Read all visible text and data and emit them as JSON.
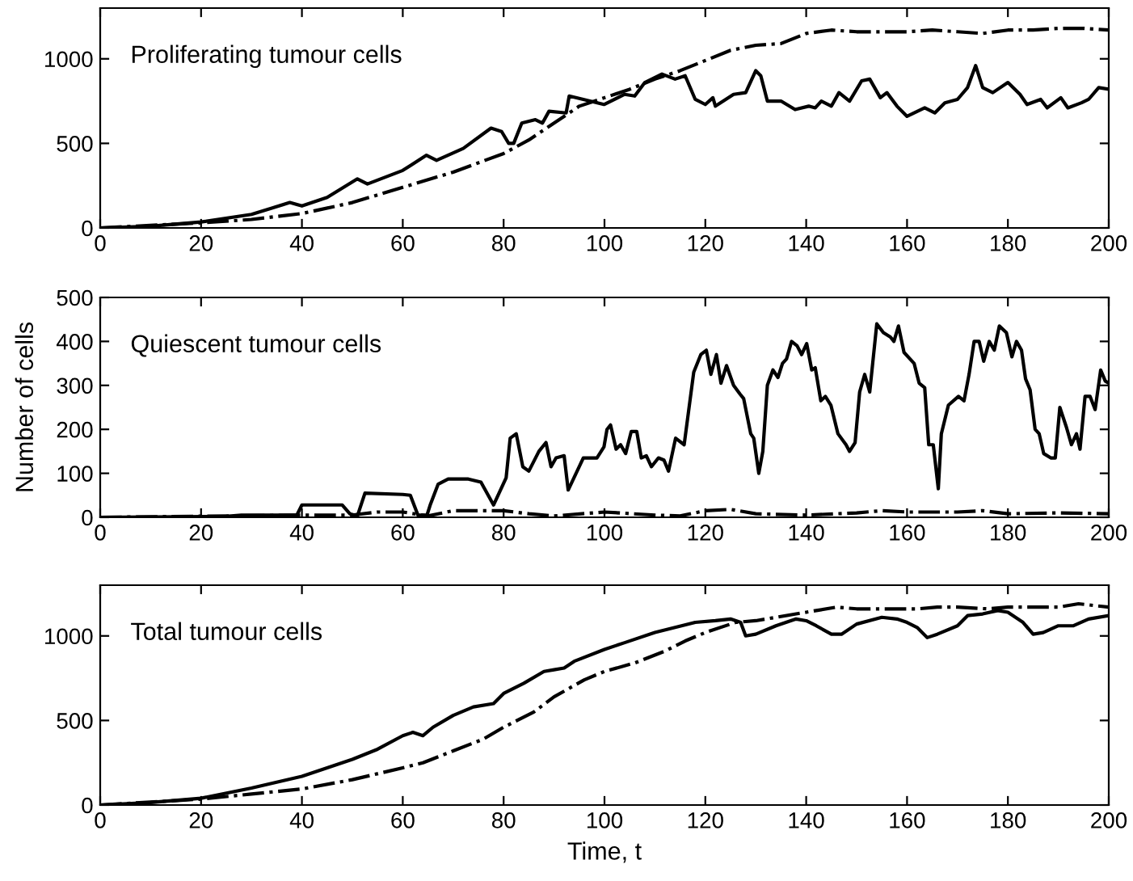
{
  "chart_data": [
    {
      "type": "line",
      "title": "Proliferating tumour cells",
      "xlim": [
        0,
        200
      ],
      "xticks": [
        0,
        20,
        40,
        60,
        80,
        100,
        120,
        140,
        160,
        180,
        200
      ],
      "ylim": [
        0,
        1300
      ],
      "yticks": [
        0,
        500,
        1000
      ],
      "grid": false,
      "series": [
        {
          "color": "#000000",
          "line_style": "solid",
          "x": [
            0,
            10,
            20,
            30,
            37.6,
            40,
            45,
            51,
            53,
            60,
            64.7,
            66.7,
            72,
            77.5,
            79.6,
            81,
            82,
            83.6,
            86.3,
            87.7,
            89,
            92.4,
            93,
            95.8,
            99.9,
            104,
            106,
            108,
            111.4,
            114,
            116,
            118,
            120,
            121.5,
            122,
            125.6,
            128,
            130,
            131,
            132.3,
            135,
            137.8,
            140.5,
            141.8,
            143,
            145,
            146.5,
            148.6,
            151,
            152.6,
            154.7,
            156,
            158,
            160,
            163.5,
            165.5,
            167.5,
            170,
            172,
            173.6,
            175,
            177,
            180,
            182.4,
            183.8,
            186.5,
            187.8,
            190.5,
            191.9,
            194.6,
            196,
            198,
            200
          ],
          "values": [
            0,
            10,
            35,
            80,
            150,
            130,
            180,
            290,
            260,
            340,
            430,
            400,
            470,
            590,
            570,
            500,
            500,
            620,
            640,
            620,
            690,
            680,
            780,
            760,
            730,
            790,
            780,
            860,
            910,
            880,
            900,
            760,
            730,
            770,
            720,
            790,
            800,
            930,
            900,
            750,
            750,
            700,
            720,
            710,
            750,
            720,
            800,
            750,
            870,
            880,
            770,
            800,
            720,
            660,
            710,
            680,
            740,
            760,
            830,
            960,
            830,
            800,
            860,
            790,
            730,
            760,
            710,
            770,
            710,
            740,
            760,
            830,
            820
          ]
        },
        {
          "color": "#000000",
          "line_style": "dashdot",
          "x": [
            0,
            20,
            30,
            40,
            50,
            60,
            70,
            80,
            85,
            90,
            95,
            100,
            105,
            110,
            115,
            120,
            125,
            130,
            135,
            140,
            145,
            150,
            155,
            160,
            165,
            170,
            175,
            180,
            185,
            190,
            195,
            200
          ],
          "values": [
            0,
            30,
            50,
            85,
            150,
            240,
            330,
            440,
            520,
            620,
            720,
            770,
            820,
            880,
            930,
            990,
            1050,
            1080,
            1090,
            1150,
            1170,
            1160,
            1160,
            1160,
            1170,
            1160,
            1150,
            1170,
            1170,
            1180,
            1180,
            1170
          ]
        }
      ]
    },
    {
      "type": "line",
      "title": "Quiescent tumour cells",
      "ylabel": "Number of cells",
      "xlim": [
        0,
        200
      ],
      "xticks": [
        0,
        20,
        40,
        60,
        80,
        100,
        120,
        140,
        160,
        180,
        200
      ],
      "ylim": [
        0,
        500
      ],
      "yticks": [
        0,
        100,
        200,
        300,
        400,
        500
      ],
      "grid": false,
      "series": [
        {
          "color": "#000000",
          "line_style": "solid",
          "x": [
            0,
            25,
            28,
            39,
            40,
            48,
            49.5,
            51,
            52.5,
            60,
            61.5,
            63,
            64.8,
            65.5,
            67,
            69,
            73,
            75.5,
            78,
            80.5,
            81.3,
            82.5,
            83.8,
            85,
            87,
            88.4,
            89.4,
            90.4,
            92,
            92.8,
            95.8,
            98.5,
            99.9,
            100.5,
            101.2,
            102.3,
            103.2,
            104.2,
            105.3,
            106.4,
            107.3,
            108.3,
            109.3,
            110.7,
            111.8,
            112.7,
            114.1,
            115.8,
            117.7,
            119.1,
            120.2,
            121.1,
            122.2,
            123.1,
            124.2,
            125.6,
            126.9,
            127.6,
            129,
            129.6,
            130.6,
            131.4,
            132.3,
            133.4,
            134.4,
            135.3,
            136.1,
            137.1,
            138.2,
            139.1,
            140.1,
            141.1,
            141.8,
            142.9,
            143.8,
            144.9,
            146.3,
            147.9,
            148.6,
            149.7,
            150.6,
            151.6,
            152.6,
            154,
            155.3,
            156.7,
            157.4,
            158.3,
            159.4,
            161.4,
            162.4,
            163.5,
            164.3,
            165.2,
            166.2,
            166.8,
            168.2,
            170.2,
            171.3,
            172.3,
            173.3,
            174.3,
            175.2,
            176.3,
            177.3,
            178.3,
            179.7,
            180.8,
            181.7,
            182.7,
            183.5,
            184.4,
            185.4,
            186.2,
            187.1,
            188.5,
            189.4,
            190.3,
            191.6,
            192.6,
            193.6,
            194.3,
            195.3,
            196.3,
            197.3,
            198.4,
            199.3,
            200
          ],
          "values": [
            0,
            2,
            5,
            5,
            28,
            28,
            8,
            3,
            55,
            52,
            50,
            5,
            5,
            30,
            75,
            87,
            87,
            80,
            28,
            90,
            180,
            190,
            115,
            105,
            150,
            170,
            115,
            135,
            140,
            62,
            135,
            135,
            160,
            200,
            210,
            155,
            165,
            145,
            195,
            195,
            135,
            140,
            115,
            135,
            130,
            105,
            180,
            165,
            330,
            370,
            380,
            325,
            370,
            305,
            345,
            300,
            280,
            270,
            190,
            180,
            100,
            150,
            300,
            335,
            318,
            350,
            360,
            400,
            390,
            370,
            395,
            335,
            340,
            265,
            275,
            255,
            190,
            165,
            150,
            170,
            285,
            325,
            285,
            440,
            420,
            410,
            400,
            435,
            375,
            350,
            305,
            295,
            165,
            165,
            65,
            190,
            255,
            275,
            265,
            325,
            400,
            400,
            355,
            400,
            380,
            435,
            420,
            365,
            400,
            380,
            315,
            290,
            200,
            190,
            145,
            135,
            135,
            250,
            205,
            165,
            190,
            155,
            275,
            275,
            245,
            335,
            310,
            305
          ]
        },
        {
          "color": "#000000",
          "line_style": "dashdot",
          "x": [
            0,
            40,
            50,
            55,
            60,
            65,
            70,
            80,
            85,
            90,
            100,
            110,
            115,
            120,
            125,
            130,
            140,
            150,
            155,
            160,
            170,
            175,
            180,
            190,
            200
          ],
          "values": [
            0,
            5,
            5,
            12,
            12,
            3,
            15,
            15,
            8,
            3,
            12,
            5,
            3,
            15,
            18,
            8,
            5,
            10,
            15,
            12,
            12,
            15,
            8,
            10,
            8
          ]
        }
      ]
    },
    {
      "type": "line",
      "title": "Total tumour cells",
      "xlabel": "Time, t",
      "xlim": [
        0,
        200
      ],
      "xticks": [
        0,
        20,
        40,
        60,
        80,
        100,
        120,
        140,
        160,
        180,
        200
      ],
      "ylim": [
        0,
        1300
      ],
      "yticks": [
        0,
        500,
        1000
      ],
      "grid": false,
      "series": [
        {
          "color": "#000000",
          "line_style": "solid",
          "x": [
            0,
            10,
            20,
            30,
            40,
            50,
            55,
            60,
            62,
            64,
            66,
            70,
            74,
            78,
            80,
            84,
            88,
            90,
            92,
            94,
            100,
            104,
            110,
            114,
            118,
            122,
            125,
            127,
            128,
            130,
            134,
            138,
            140,
            142,
            145,
            147,
            150,
            155,
            158,
            160,
            162,
            164,
            166,
            170,
            172,
            175,
            178,
            180,
            183,
            185,
            187,
            190,
            193,
            196,
            200
          ],
          "values": [
            0,
            15,
            40,
            100,
            170,
            270,
            330,
            410,
            430,
            410,
            460,
            530,
            580,
            600,
            660,
            720,
            790,
            800,
            810,
            850,
            920,
            960,
            1020,
            1050,
            1080,
            1090,
            1100,
            1080,
            1000,
            1010,
            1060,
            1100,
            1090,
            1060,
            1010,
            1010,
            1070,
            1110,
            1100,
            1080,
            1050,
            990,
            1010,
            1060,
            1120,
            1130,
            1150,
            1140,
            1080,
            1010,
            1020,
            1060,
            1060,
            1100,
            1120
          ]
        },
        {
          "color": "#000000",
          "line_style": "dashdot",
          "x": [
            0,
            20,
            30,
            40,
            50,
            60,
            64,
            70,
            76,
            80,
            86,
            90,
            96,
            100,
            106,
            112,
            116,
            120,
            126,
            130,
            134,
            138,
            142,
            146,
            150,
            156,
            162,
            166,
            170,
            176,
            180,
            186,
            190,
            194,
            200
          ],
          "values": [
            0,
            35,
            65,
            95,
            150,
            220,
            250,
            320,
            390,
            460,
            550,
            640,
            740,
            790,
            840,
            910,
            970,
            1020,
            1080,
            1090,
            1110,
            1130,
            1150,
            1170,
            1160,
            1160,
            1160,
            1170,
            1170,
            1160,
            1170,
            1170,
            1170,
            1190,
            1170
          ]
        }
      ]
    }
  ]
}
